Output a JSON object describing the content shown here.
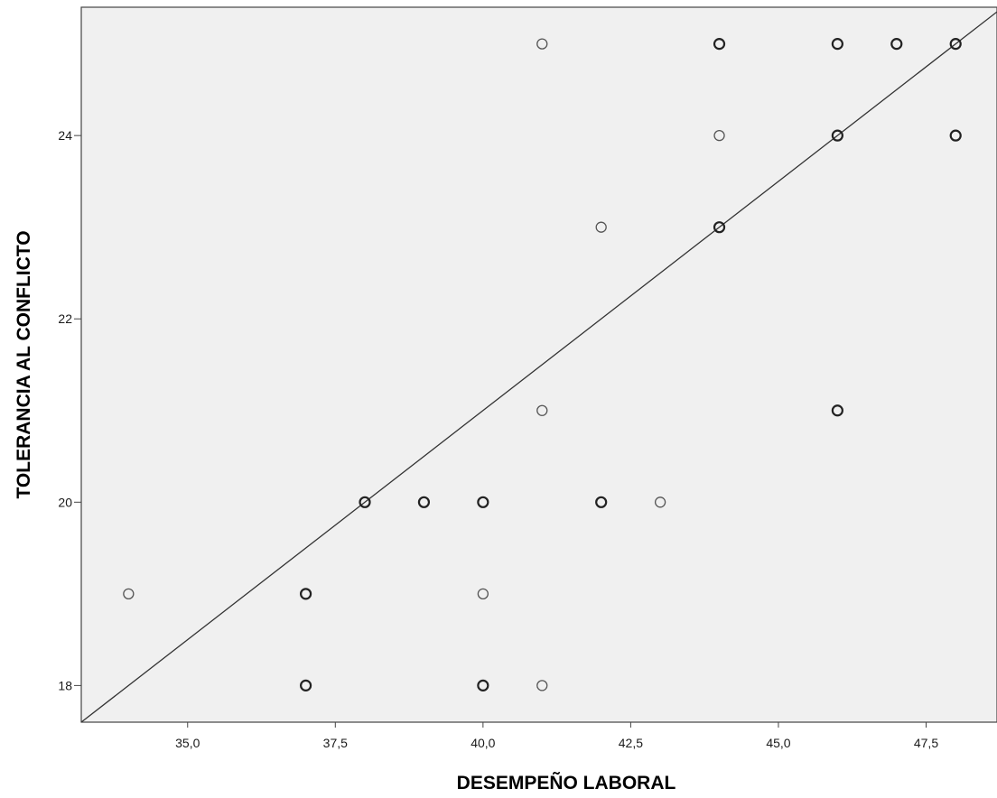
{
  "chart_data": {
    "type": "scatter",
    "title": "",
    "xlabel": "DESEMPEÑO LABORAL",
    "ylabel": "TOLERANCIA AL CONFLICTO",
    "xlim": [
      33.2,
      48.7
    ],
    "ylim": [
      17.6,
      25.4
    ],
    "x_ticks": [
      35.0,
      37.5,
      40.0,
      42.5,
      45.0,
      47.5
    ],
    "x_tick_labels": [
      "35,0",
      "37,5",
      "40,0",
      "42,5",
      "45,0",
      "47,5"
    ],
    "y_ticks": [
      18,
      20,
      22,
      24
    ],
    "y_tick_labels": [
      "18",
      "20",
      "22",
      "24"
    ],
    "grid": false,
    "legend": "none",
    "background": "#f0f0f0",
    "marker": "open-circle",
    "points": [
      {
        "x": 34,
        "y": 19,
        "bold": false
      },
      {
        "x": 37,
        "y": 19,
        "bold": true
      },
      {
        "x": 37,
        "y": 18,
        "bold": true
      },
      {
        "x": 38,
        "y": 20,
        "bold": true
      },
      {
        "x": 39,
        "y": 20,
        "bold": true
      },
      {
        "x": 40,
        "y": 20,
        "bold": true
      },
      {
        "x": 40,
        "y": 19,
        "bold": false
      },
      {
        "x": 40,
        "y": 18,
        "bold": true
      },
      {
        "x": 41,
        "y": 25,
        "bold": false
      },
      {
        "x": 41,
        "y": 21,
        "bold": false
      },
      {
        "x": 41,
        "y": 18,
        "bold": false
      },
      {
        "x": 42,
        "y": 23,
        "bold": false
      },
      {
        "x": 42,
        "y": 20,
        "bold": true
      },
      {
        "x": 43,
        "y": 20,
        "bold": false
      },
      {
        "x": 44,
        "y": 25,
        "bold": true
      },
      {
        "x": 44,
        "y": 24,
        "bold": false
      },
      {
        "x": 44,
        "y": 23,
        "bold": true
      },
      {
        "x": 46,
        "y": 25,
        "bold": true
      },
      {
        "x": 46,
        "y": 24,
        "bold": true
      },
      {
        "x": 46,
        "y": 21,
        "bold": true
      },
      {
        "x": 47,
        "y": 25,
        "bold": true
      },
      {
        "x": 48,
        "y": 25,
        "bold": true
      },
      {
        "x": 48,
        "y": 24,
        "bold": true
      }
    ],
    "reference_line": {
      "x1": 33.2,
      "y1": 17.6,
      "x2": 48.7,
      "y2": 25.35
    }
  }
}
